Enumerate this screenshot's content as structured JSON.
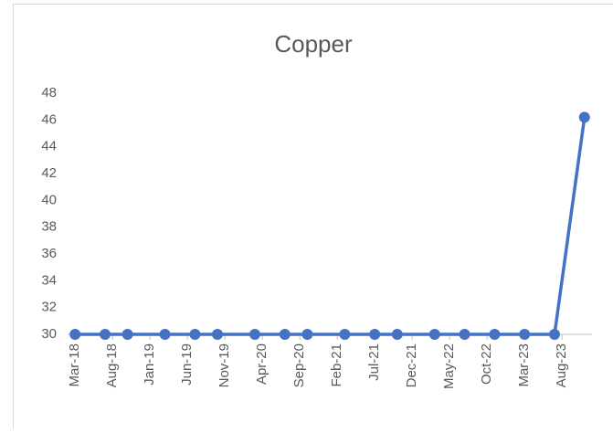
{
  "chart_data": {
    "type": "line",
    "title": "Copper",
    "x": [
      "2018-03",
      "2018-07",
      "2018-10",
      "2019-03",
      "2019-07",
      "2019-10",
      "2020-03",
      "2020-07",
      "2020-10",
      "2021-03",
      "2021-07",
      "2021-10",
      "2022-03",
      "2022-07",
      "2022-11",
      "2023-03",
      "2023-07",
      "2023-11"
    ],
    "series": [
      {
        "name": "Copper",
        "color": "#4472c4",
        "values": [
          30,
          30,
          30,
          30,
          30,
          30,
          30,
          30,
          30,
          30,
          30,
          30,
          30,
          30,
          30,
          30,
          30,
          46.2
        ]
      }
    ],
    "xlim": [
      "2018-02",
      "2023-12"
    ],
    "xticks": [
      {
        "value": "2018-03",
        "label": "Mar-18"
      },
      {
        "value": "2018-08",
        "label": "Aug-18"
      },
      {
        "value": "2019-01",
        "label": "Jan-19"
      },
      {
        "value": "2019-06",
        "label": "Jun-19"
      },
      {
        "value": "2019-11",
        "label": "Nov-19"
      },
      {
        "value": "2020-04",
        "label": "Apr-20"
      },
      {
        "value": "2020-09",
        "label": "Sep-20"
      },
      {
        "value": "2021-02",
        "label": "Feb-21"
      },
      {
        "value": "2021-07",
        "label": "Jul-21"
      },
      {
        "value": "2021-12",
        "label": "Dec-21"
      },
      {
        "value": "2022-05",
        "label": "May-22"
      },
      {
        "value": "2022-10",
        "label": "Oct-22"
      },
      {
        "value": "2023-03",
        "label": "Mar-23"
      },
      {
        "value": "2023-08",
        "label": "Aug-23"
      }
    ],
    "ylim": [
      30,
      48
    ],
    "yticks": [
      30,
      32,
      34,
      36,
      38,
      40,
      42,
      44,
      46,
      48
    ],
    "grid": false
  }
}
